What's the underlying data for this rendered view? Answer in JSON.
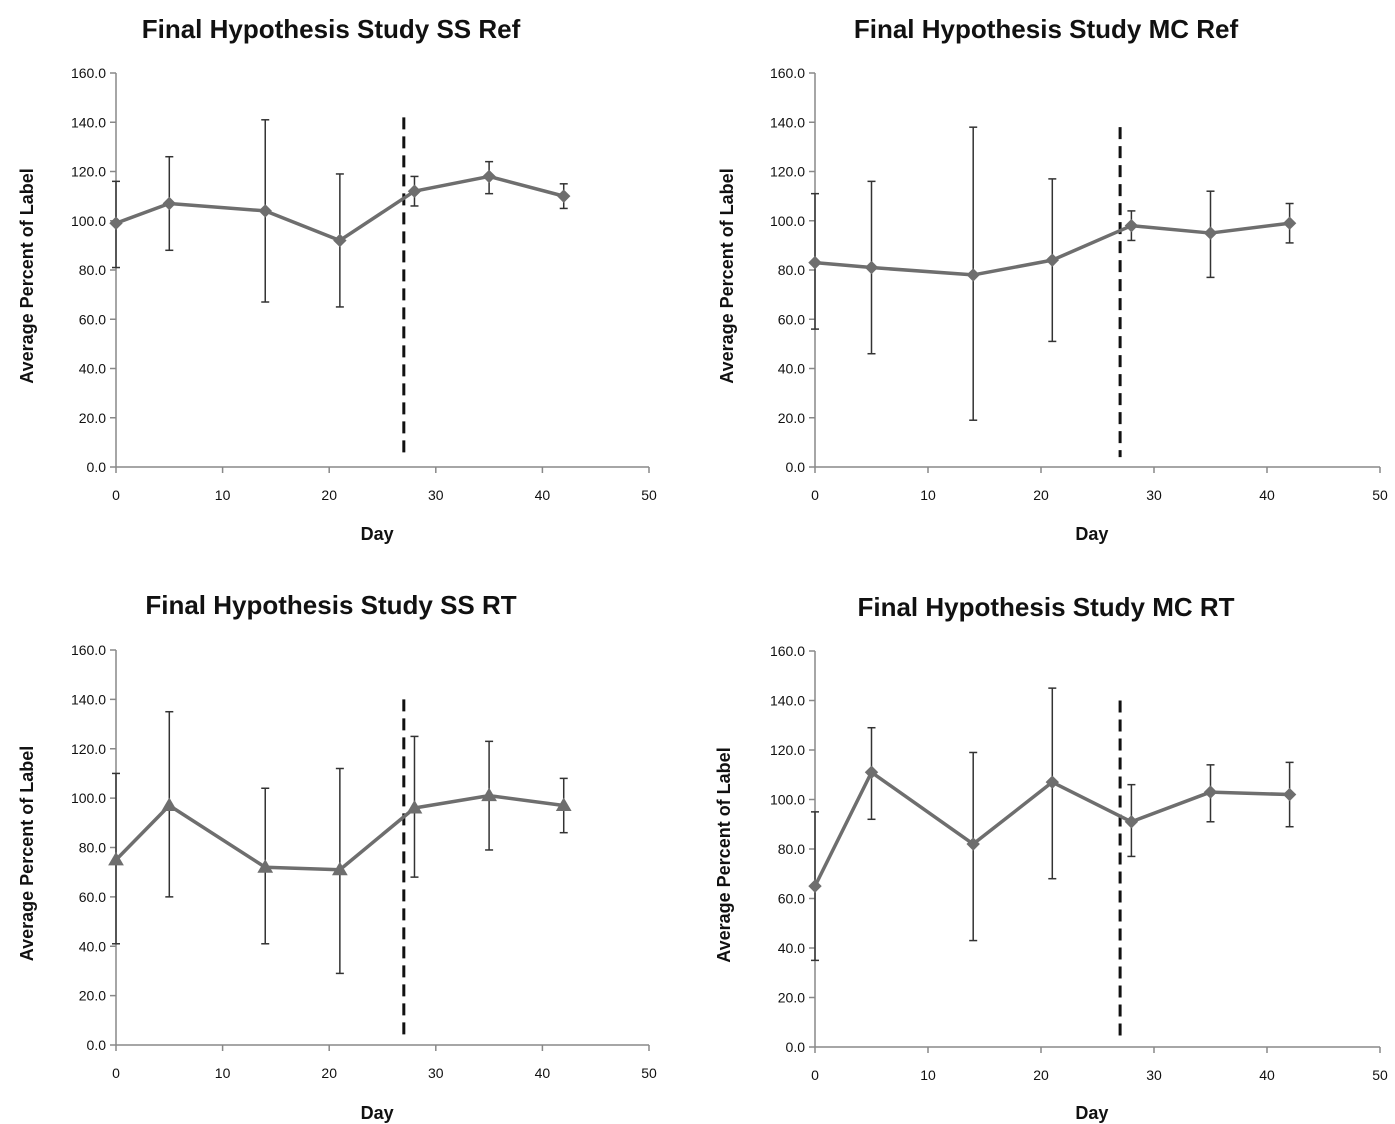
{
  "colors": {
    "series": "#6e6e6e",
    "axis": "#888888",
    "errorbar": "#333333",
    "divider": "#111111",
    "text": "#111111"
  },
  "chart_data": [
    {
      "type": "line",
      "title": "Final Hypothesis Study SS Ref",
      "xlabel": "Day",
      "ylabel": "Average Percent of Label",
      "xlim": [
        0,
        50
      ],
      "ylim": [
        0,
        160
      ],
      "xticks": [
        0,
        10,
        20,
        30,
        40,
        50
      ],
      "xtick_labels": [
        "0",
        "10",
        "20",
        "30",
        "40",
        "50"
      ],
      "yticks": [
        0,
        20,
        40,
        60,
        80,
        100,
        120,
        140,
        160
      ],
      "ytick_labels": [
        "0.0",
        "20.0",
        "40.0",
        "60.0",
        "80.0",
        "100.0",
        "120.0",
        "140.0",
        "160.0"
      ],
      "grid": false,
      "marker": "diamond",
      "divider_day": 27,
      "divider_range": [
        4,
        142
      ],
      "series": [
        {
          "x": [
            0,
            5,
            14,
            21,
            28,
            35,
            42
          ],
          "y": [
            99,
            107,
            104,
            92,
            112,
            118,
            110
          ],
          "err_low": [
            81,
            88,
            67,
            65,
            106,
            111,
            105
          ],
          "err_high": [
            116,
            126,
            141,
            119,
            118,
            124,
            115
          ]
        }
      ]
    },
    {
      "type": "line",
      "title": "Final Hypothesis Study MC Ref",
      "xlabel": "Day",
      "ylabel": "Average Percent of Label",
      "xlim": [
        0,
        50
      ],
      "ylim": [
        0,
        160
      ],
      "xticks": [
        0,
        10,
        20,
        30,
        40,
        50
      ],
      "xtick_labels": [
        "0",
        "10",
        "20",
        "30",
        "40",
        "50"
      ],
      "yticks": [
        0,
        20,
        40,
        60,
        80,
        100,
        120,
        140,
        160
      ],
      "ytick_labels": [
        "0.0",
        "20.0",
        "40.0",
        "60.0",
        "80.0",
        "100.0",
        "120.0",
        "140.0",
        "160.0"
      ],
      "grid": false,
      "marker": "diamond",
      "divider_day": 27,
      "divider_range": [
        4,
        138
      ],
      "series": [
        {
          "x": [
            0,
            5,
            14,
            21,
            28,
            35,
            42
          ],
          "y": [
            83,
            81,
            78,
            84,
            98,
            95,
            99
          ],
          "err_low": [
            56,
            46,
            19,
            51,
            92,
            77,
            91
          ],
          "err_high": [
            111,
            116,
            138,
            117,
            104,
            112,
            107
          ]
        }
      ]
    },
    {
      "type": "line",
      "title": "Final Hypothesis Study SS RT",
      "xlabel": "Day",
      "ylabel": "Average Percent of Label",
      "xlim": [
        0,
        50
      ],
      "ylim": [
        0,
        160
      ],
      "xticks": [
        0,
        10,
        20,
        30,
        40,
        50
      ],
      "xtick_labels": [
        "0",
        "10",
        "20",
        "30",
        "40",
        "50"
      ],
      "yticks": [
        0,
        20,
        40,
        60,
        80,
        100,
        120,
        140,
        160
      ],
      "ytick_labels": [
        "0.0",
        "20.0",
        "40.0",
        "60.0",
        "80.0",
        "100.0",
        "120.0",
        "140.0",
        "160.0"
      ],
      "grid": false,
      "marker": "triangle",
      "divider_day": 27,
      "divider_range": [
        4,
        140
      ],
      "series": [
        {
          "x": [
            0,
            5,
            14,
            21,
            28,
            35,
            42
          ],
          "y": [
            75,
            97,
            72,
            71,
            96,
            101,
            97
          ],
          "err_low": [
            41,
            60,
            41,
            29,
            68,
            79,
            86
          ],
          "err_high": [
            110,
            135,
            104,
            112,
            125,
            123,
            108
          ]
        }
      ]
    },
    {
      "type": "line",
      "title": "Final Hypothesis Study MC RT",
      "xlabel": "Day",
      "ylabel": "Average Percent of Label",
      "xlim": [
        0,
        50
      ],
      "ylim": [
        0,
        160
      ],
      "xticks": [
        0,
        10,
        20,
        30,
        40,
        50
      ],
      "xtick_labels": [
        "0",
        "10",
        "20",
        "30",
        "40",
        "50"
      ],
      "yticks": [
        0,
        20,
        40,
        60,
        80,
        100,
        120,
        140,
        160
      ],
      "ytick_labels": [
        "0.0",
        "20.0",
        "40.0",
        "60.0",
        "80.0",
        "100.0",
        "120.0",
        "140.0",
        "160.0"
      ],
      "grid": false,
      "marker": "diamond",
      "divider_day": 27,
      "divider_range": [
        4,
        140
      ],
      "series": [
        {
          "x": [
            0,
            5,
            14,
            21,
            28,
            35,
            42
          ],
          "y": [
            65,
            111,
            82,
            107,
            91,
            103,
            102
          ],
          "err_low": [
            35,
            92,
            43,
            68,
            77,
            91,
            89
          ],
          "err_high": [
            95,
            129,
            119,
            145,
            106,
            114,
            115
          ]
        }
      ]
    }
  ]
}
